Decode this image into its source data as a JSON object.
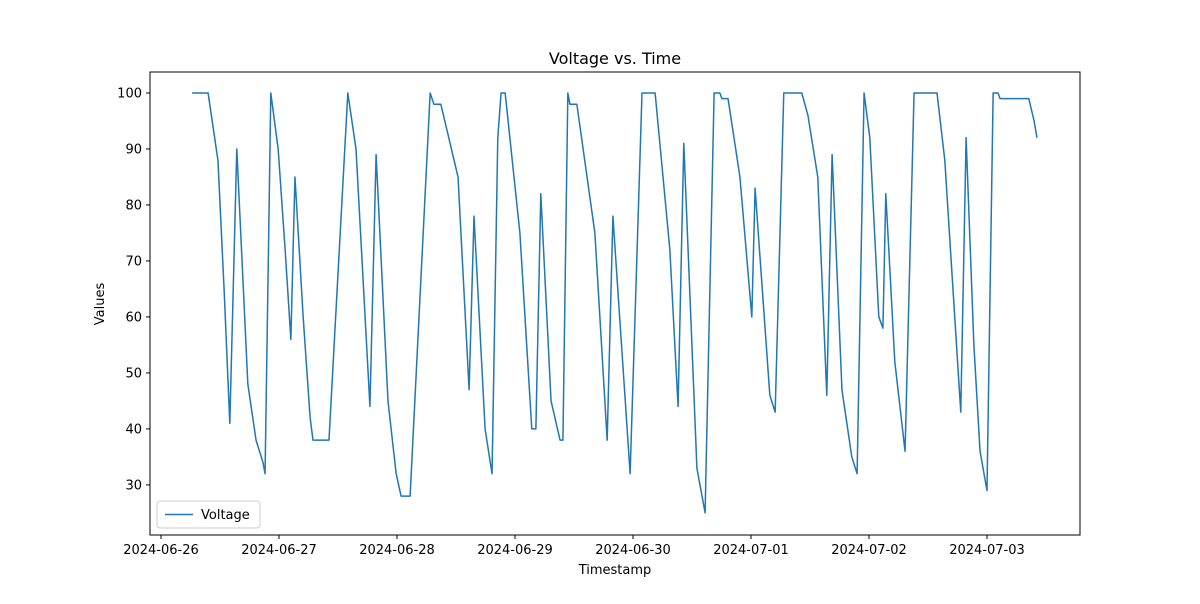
{
  "chart_data": {
    "type": "line",
    "title": "Voltage vs. Time",
    "x_label": "Timestamp",
    "y_label": "Values",
    "x": [
      "2024-06-26T06:20",
      "2024-06-26T09:35",
      "2024-06-26T10:35",
      "2024-06-26T11:35",
      "2024-06-26T12:50",
      "2024-06-26T14:00",
      "2024-06-26T15:25",
      "2024-06-26T17:40",
      "2024-06-26T19:20",
      "2024-06-26T20:45",
      "2024-06-26T21:10",
      "2024-06-26T22:00",
      "2024-06-26T22:20",
      "2024-06-26T23:50",
      "2024-06-27T01:15",
      "2024-06-27T02:25",
      "2024-06-27T03:15",
      "2024-06-27T04:55",
      "2024-06-27T06:20",
      "2024-06-27T06:55",
      "2024-06-27T10:10",
      "2024-06-27T14:00",
      "2024-06-27T15:40",
      "2024-06-27T18:30",
      "2024-06-27T19:45",
      "2024-06-27T22:10",
      "2024-06-27T23:50",
      "2024-06-28T00:50",
      "2024-06-28T02:40",
      "2024-06-28T06:45",
      "2024-06-28T07:30",
      "2024-06-28T08:55",
      "2024-06-28T12:25",
      "2024-06-28T14:40",
      "2024-06-28T15:40",
      "2024-06-28T17:55",
      "2024-06-28T19:20",
      "2024-06-28T20:30",
      "2024-06-28T21:10",
      "2024-06-28T22:00",
      "2024-06-29T01:00",
      "2024-06-29T03:25",
      "2024-06-29T04:15",
      "2024-06-29T05:15",
      "2024-06-29T07:20",
      "2024-06-29T09:10",
      "2024-06-29T09:45",
      "2024-06-29T10:45",
      "2024-06-29T11:10",
      "2024-06-29T12:35",
      "2024-06-29T16:15",
      "2024-06-29T18:45",
      "2024-06-29T19:55",
      "2024-06-29T23:25",
      "2024-06-30T01:50",
      "2024-06-30T04:30",
      "2024-06-30T07:30",
      "2024-06-30T09:10",
      "2024-06-30T10:20",
      "2024-06-30T13:00",
      "2024-06-30T14:40",
      "2024-06-30T16:30",
      "2024-06-30T17:40",
      "2024-06-30T18:05",
      "2024-06-30T19:20",
      "2024-06-30T21:45",
      "2024-07-01T00:10",
      "2024-07-01T00:50",
      "2024-07-01T03:50",
      "2024-07-01T04:55",
      "2024-07-01T06:40",
      "2024-07-01T10:20",
      "2024-07-01T11:35",
      "2024-07-01T13:35",
      "2024-07-01T15:25",
      "2024-07-01T16:30",
      "2024-07-01T18:30",
      "2024-07-01T20:30",
      "2024-07-01T21:35",
      "2024-07-01T23:00",
      "2024-07-02T00:10",
      "2024-07-02T02:00",
      "2024-07-02T02:50",
      "2024-07-02T03:25",
      "2024-07-02T05:15",
      "2024-07-02T07:20",
      "2024-07-02T09:10",
      "2024-07-02T13:50",
      "2024-07-02T15:25",
      "2024-07-02T18:40",
      "2024-07-02T19:45",
      "2024-07-02T21:20",
      "2024-07-02T22:35",
      "2024-07-03T00:00",
      "2024-07-03T01:15",
      "2024-07-03T02:15",
      "2024-07-03T02:40",
      "2024-07-03T08:30",
      "2024-07-03T09:35",
      "2024-07-03T10:10"
    ],
    "series": [
      {
        "name": "Voltage",
        "color": "#1f77b4",
        "values": [
          100,
          100,
          94,
          88,
          65,
          41,
          90,
          48,
          38,
          34,
          32,
          80,
          100,
          90,
          72,
          56,
          85,
          60,
          42,
          38,
          38,
          100,
          90,
          44,
          89,
          45,
          32,
          28,
          28,
          100,
          98,
          98,
          85,
          47,
          78,
          40,
          32,
          92,
          100,
          100,
          75,
          40,
          40,
          82,
          45,
          38,
          38,
          100,
          98,
          98,
          75,
          38,
          78,
          32,
          100,
          100,
          72,
          44,
          91,
          33,
          25,
          100,
          100,
          99,
          99,
          85,
          60,
          83,
          46,
          43,
          100,
          100,
          96,
          85,
          46,
          89,
          47,
          35,
          32,
          100,
          92,
          60,
          58,
          82,
          52,
          36,
          100,
          100,
          88,
          43,
          92,
          55,
          36,
          29,
          100,
          100,
          99,
          99,
          95,
          92
        ]
      }
    ],
    "xlim": [
      "2024-06-25T21:46",
      "2024-07-03T18:55"
    ],
    "xticks": [
      "2024-06-26",
      "2024-06-27",
      "2024-06-28",
      "2024-06-29",
      "2024-06-30",
      "2024-07-01",
      "2024-07-02",
      "2024-07-03"
    ],
    "ylim": [
      21.05,
      103.75
    ],
    "yticks": [
      30,
      40,
      50,
      60,
      70,
      80,
      90,
      100
    ],
    "legend": "lower left"
  }
}
